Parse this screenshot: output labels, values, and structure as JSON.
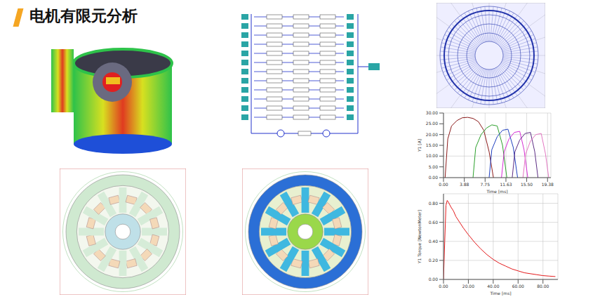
{
  "title": "电机有限元分析",
  "chart_data": [
    {
      "type": "line",
      "y_label": "Y1 [A]",
      "x_label": "Time [ms]",
      "xlim": [
        0,
        20
      ],
      "xticks": [
        {
          "value": 0,
          "label": "0.00"
        },
        {
          "value": 3.88,
          "label": "3.88"
        },
        {
          "value": 7.75,
          "label": "7.75"
        },
        {
          "value": 11.63,
          "label": "11.63"
        },
        {
          "value": 15.5,
          "label": "15.50"
        },
        {
          "value": 19.38,
          "label": "19.38"
        }
      ],
      "ylim": [
        0,
        30
      ],
      "yticks": [
        {
          "value": 0,
          "label": "0.00"
        },
        {
          "value": 5,
          "label": "5.00"
        },
        {
          "value": 10,
          "label": "10.00"
        },
        {
          "value": 15,
          "label": "15.00"
        },
        {
          "value": 20,
          "label": "20.00"
        },
        {
          "value": 25,
          "label": "25.00"
        },
        {
          "value": 30,
          "label": "30.00"
        }
      ],
      "grid": true,
      "series": [
        {
          "color": "#8b1a1a",
          "x": [
            0.3,
            0.8,
            1.5,
            2.5,
            3.5,
            4.5,
            5.5,
            6.5,
            7.5,
            8.5,
            9.3
          ],
          "values": [
            0,
            18,
            24,
            26.5,
            27.8,
            28,
            27.5,
            26,
            22,
            12,
            0
          ]
        },
        {
          "color": "#2ca02c",
          "x": [
            5.5,
            6,
            7,
            8,
            9,
            10,
            11,
            11.8
          ],
          "values": [
            0,
            14,
            20,
            23,
            24.5,
            24,
            15,
            0
          ]
        },
        {
          "color": "#1f3fbf",
          "x": [
            8.5,
            9,
            10,
            11,
            12,
            13,
            13.8
          ],
          "values": [
            0,
            13,
            19,
            22,
            22.5,
            14,
            0
          ]
        },
        {
          "color": "#d62dd6",
          "x": [
            10.8,
            11.3,
            12.2,
            13.2,
            14.2,
            15,
            15.7
          ],
          "values": [
            0,
            12,
            18,
            21,
            21.5,
            13,
            0
          ]
        },
        {
          "color": "#5b2c83",
          "x": [
            12.8,
            13.3,
            14.2,
            15.2,
            16.2,
            17,
            17.6
          ],
          "values": [
            0,
            12,
            17.5,
            20.5,
            21,
            12,
            0
          ]
        },
        {
          "color": "#e377c2",
          "x": [
            14.8,
            15.3,
            16.2,
            17.2,
            18.2,
            19,
            19.6
          ],
          "values": [
            0,
            11,
            17,
            20,
            20.5,
            11,
            0
          ]
        }
      ]
    },
    {
      "type": "line",
      "y_label": "Y1 Torque [NewtonMeter]",
      "x_label": "Time [ms]",
      "xlim": [
        0,
        92
      ],
      "xticks": [
        {
          "value": 0,
          "label": "0.00"
        },
        {
          "value": 20,
          "label": "20.00"
        },
        {
          "value": 40,
          "label": "40.00"
        },
        {
          "value": 60,
          "label": "60.00"
        },
        {
          "value": 80,
          "label": "80.00"
        }
      ],
      "ylim": [
        0,
        0.9
      ],
      "yticks": [
        {
          "value": 0,
          "label": "0.00"
        },
        {
          "value": 0.2,
          "label": "0.20"
        },
        {
          "value": 0.4,
          "label": "0.40"
        },
        {
          "value": 0.6,
          "label": "0.60"
        },
        {
          "value": 0.8,
          "label": "0.80"
        }
      ],
      "grid": true,
      "series": [
        {
          "color": "#e41a1c",
          "x": [
            0,
            1,
            2,
            3,
            4,
            6,
            8,
            10,
            13,
            16,
            20,
            25,
            30,
            35,
            40,
            45,
            50,
            55,
            60,
            65,
            70,
            75,
            80,
            85,
            90
          ],
          "values": [
            0,
            0.4,
            0.78,
            0.83,
            0.81,
            0.76,
            0.72,
            0.66,
            0.6,
            0.54,
            0.47,
            0.39,
            0.32,
            0.26,
            0.21,
            0.17,
            0.14,
            0.11,
            0.09,
            0.07,
            0.06,
            0.05,
            0.04,
            0.035,
            0.03
          ]
        }
      ]
    }
  ]
}
